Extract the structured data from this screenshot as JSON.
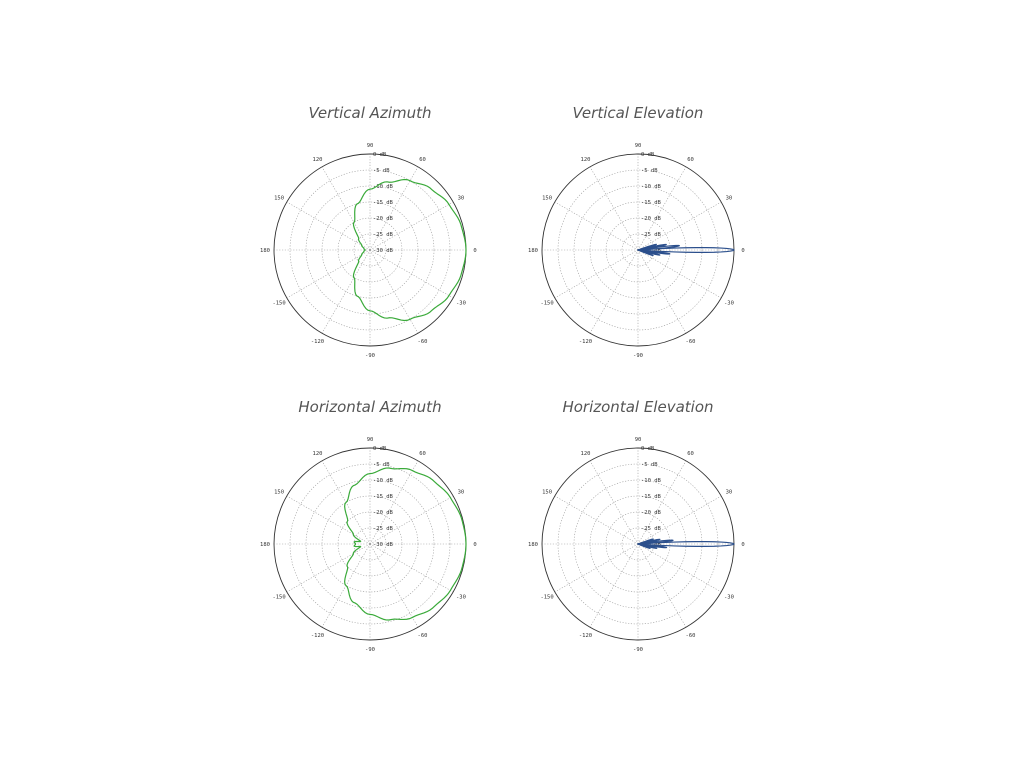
{
  "chart_data": [
    {
      "type": "polar",
      "title": "Vertical Azimuth",
      "series_color": "#3aaa3a",
      "angle_labels": [
        "90",
        "60",
        "30",
        "0",
        "-30",
        "-60",
        "-90",
        "-120",
        "-150",
        "180",
        "150",
        "120"
      ],
      "angle_label_values": [
        90,
        60,
        30,
        0,
        -30,
        -60,
        -90,
        -120,
        -150,
        180,
        150,
        120
      ],
      "radial_labels": [
        "0 dB",
        "-5 dB",
        "-10 dB",
        "-15 dB",
        "-20 dB",
        "-25 dB",
        "-30 dB"
      ],
      "rlim_db": [
        -30,
        0
      ],
      "grid": true,
      "pattern": {
        "angle_deg": [
          0,
          15,
          30,
          45,
          60,
          75,
          90,
          105,
          120,
          135,
          150,
          165,
          180,
          -165,
          -150,
          -135,
          -120,
          -105,
          -90,
          -75,
          -60,
          -45,
          -30,
          -15
        ],
        "gain_db": [
          0,
          -0.5,
          -1.5,
          -3,
          -5,
          -8,
          -11,
          -15,
          -20,
          -25,
          -27,
          -28,
          -28.5,
          -28,
          -27,
          -25,
          -20,
          -15,
          -11,
          -8,
          -5,
          -3,
          -1.5,
          -0.5
        ]
      }
    },
    {
      "type": "polar",
      "title": "Vertical Elevation",
      "series_color": "#2b4f8c",
      "angle_labels": [
        "90",
        "60",
        "30",
        "0",
        "-30",
        "-60",
        "-90",
        "-120",
        "-150",
        "180",
        "150",
        "120"
      ],
      "angle_label_values": [
        90,
        60,
        30,
        0,
        -30,
        -60,
        -90,
        -120,
        -150,
        180,
        150,
        120
      ],
      "radial_labels": [
        "0 dB",
        "-5 dB",
        "-10 dB",
        "-15 dB",
        "-20 dB",
        "-25 dB",
        "-30 dB"
      ],
      "rlim_db": [
        -30,
        0
      ],
      "grid": true,
      "pattern": {
        "main_lobe": {
          "center_deg": 0,
          "peak_db": 0,
          "halfwidth_deg": 4
        },
        "side_lobes": [
          {
            "center_deg": 6,
            "peak_db": -17,
            "halfwidth_deg": 3
          },
          {
            "center_deg": 11,
            "peak_db": -21,
            "halfwidth_deg": 3
          },
          {
            "center_deg": 17,
            "peak_db": -24,
            "halfwidth_deg": 3
          },
          {
            "center_deg": -7,
            "peak_db": -20,
            "halfwidth_deg": 3
          },
          {
            "center_deg": -13,
            "peak_db": -23,
            "halfwidth_deg": 3
          },
          {
            "center_deg": -20,
            "peak_db": -25,
            "halfwidth_deg": 3
          }
        ]
      }
    },
    {
      "type": "polar",
      "title": "Horizontal Azimuth",
      "series_color": "#3aaa3a",
      "angle_labels": [
        "90",
        "60",
        "30",
        "0",
        "-30",
        "-60",
        "-90",
        "-120",
        "-150",
        "180",
        "150",
        "120"
      ],
      "angle_label_values": [
        90,
        60,
        30,
        0,
        -30,
        -60,
        -90,
        -120,
        -150,
        180,
        150,
        120
      ],
      "radial_labels": [
        "0 dB",
        "-5 dB",
        "-10 dB",
        "-15 dB",
        "-20 dB",
        "-25 dB",
        "-30 dB"
      ],
      "rlim_db": [
        -30,
        0
      ],
      "grid": true,
      "pattern": {
        "angle_deg": [
          0,
          15,
          30,
          45,
          60,
          75,
          90,
          105,
          120,
          135,
          150,
          165,
          172,
          180,
          -172,
          -165,
          -150,
          -135,
          -120,
          -105,
          -90,
          -75,
          -60,
          -45,
          -30,
          -15
        ],
        "gain_db": [
          0,
          -0.3,
          -1,
          -2,
          -3.5,
          -5.5,
          -8,
          -11,
          -15,
          -20,
          -24,
          -27,
          -25,
          -25.5,
          -25,
          -27,
          -24,
          -20,
          -15,
          -11,
          -8,
          -5.5,
          -3.5,
          -2,
          -1,
          -0.3
        ]
      }
    },
    {
      "type": "polar",
      "title": "Horizontal Elevation",
      "series_color": "#2b4f8c",
      "angle_labels": [
        "90",
        "60",
        "30",
        "0",
        "-30",
        "-60",
        "-90",
        "-120",
        "-150",
        "180",
        "150",
        "120"
      ],
      "angle_label_values": [
        90,
        60,
        30,
        0,
        -30,
        -60,
        -90,
        -120,
        -150,
        180,
        150,
        120
      ],
      "radial_labels": [
        "0 dB",
        "-5 dB",
        "-10 dB",
        "-15 dB",
        "-20 dB",
        "-25 dB",
        "-30 dB"
      ],
      "rlim_db": [
        -30,
        0
      ],
      "grid": true,
      "pattern": {
        "main_lobe": {
          "center_deg": 0,
          "peak_db": 0,
          "halfwidth_deg": 4
        },
        "side_lobes": [
          {
            "center_deg": 6,
            "peak_db": -19,
            "halfwidth_deg": 3
          },
          {
            "center_deg": 12,
            "peak_db": -23,
            "halfwidth_deg": 3
          },
          {
            "center_deg": 18,
            "peak_db": -25,
            "halfwidth_deg": 3
          },
          {
            "center_deg": -7,
            "peak_db": -21,
            "halfwidth_deg": 3
          },
          {
            "center_deg": -13,
            "peak_db": -24,
            "halfwidth_deg": 3
          },
          {
            "center_deg": -20,
            "peak_db": -26,
            "halfwidth_deg": 3
          }
        ]
      }
    }
  ]
}
